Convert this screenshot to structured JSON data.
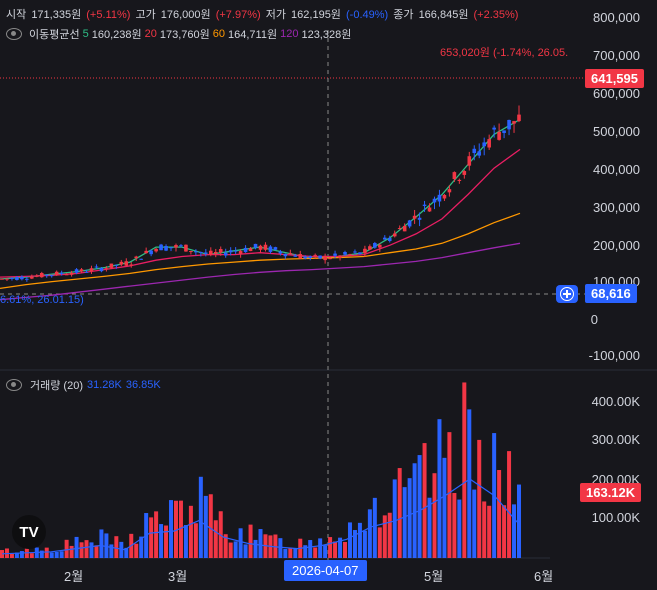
{
  "ohlc": {
    "open_label": "시작",
    "open_value": "171,335원",
    "open_change": "(+5.11%)",
    "high_label": "고가",
    "high_value": "176,000원",
    "high_change": "(+7.97%)",
    "low_label": "저가",
    "low_value": "162,195원",
    "low_change": "(-0.49%)",
    "close_label": "종가",
    "close_value": "166,845원",
    "close_change": "(+2.35%)"
  },
  "ma": {
    "title": "이동평균선",
    "p5": "5",
    "v5": "160,238원",
    "p20": "20",
    "v20": "173,760원",
    "p60": "60",
    "v60": "164,711원",
    "p120": "120",
    "v120": "123,328원"
  },
  "volume": {
    "title": "거래량 (20)",
    "v1": "31.28K",
    "v2": "36.85K"
  },
  "price_axis": [
    "800,000",
    "700,000",
    "600,000",
    "500,000",
    "400,000",
    "300,000",
    "200,000",
    "100,000",
    "0",
    "-100,000"
  ],
  "volume_axis": [
    "400.00K",
    "300.00K",
    "200.00K",
    "100.00K"
  ],
  "time_axis": [
    "2월",
    "3월",
    "5월",
    "6월"
  ],
  "crosshair_date": "2026-04-07",
  "current_price_tag": "641,595",
  "crosshair_price_tag": "68,616",
  "volume_tag": "163.12K",
  "high_annotation": "653,020원 (-1.74%, 26.05.",
  "low_annotation": "6.61%, 26.01.15)",
  "logo": "TV",
  "colors": {
    "up": "#f23645",
    "down": "#2962ff",
    "ma5": "#2ebd85",
    "ma20": "#e91e63",
    "ma60": "#ff9800",
    "ma120": "#9c27b0"
  },
  "chart_data": [
    {
      "type": "candlestick",
      "ylim": [
        -100000,
        800000
      ],
      "series": [
        {
          "name": "5",
          "values": [
            105000,
            110000,
            118000,
            125000,
            135000,
            150000,
            190000,
            190000,
            170000,
            180000,
            190000,
            175000,
            160000,
            165000,
            175000,
            215000,
            270000,
            330000,
            410000,
            490000,
            530000
          ]
        },
        {
          "name": "20",
          "values": [
            110000,
            112000,
            115000,
            120000,
            130000,
            140000,
            155000,
            165000,
            170000,
            170000,
            175000,
            170000,
            165000,
            165000,
            170000,
            195000,
            225000,
            265000,
            330000,
            400000,
            450000
          ]
        },
        {
          "name": "60",
          "values": [
            80000,
            90000,
            98000,
            105000,
            112000,
            120000,
            130000,
            138000,
            145000,
            150000,
            155000,
            158000,
            160000,
            162000,
            165000,
            175000,
            185000,
            200000,
            225000,
            255000,
            280000
          ]
        },
        {
          "name": "120",
          "values": [
            50000,
            56000,
            62000,
            70000,
            78000,
            86000,
            94000,
            102000,
            110000,
            117000,
            123000,
            127000,
            130000,
            134000,
            138000,
            145000,
            152000,
            162000,
            175000,
            188000,
            200000
          ]
        }
      ]
    },
    {
      "type": "bar",
      "ylim": [
        0,
        450000
      ],
      "series": [
        {
          "name": "거래량",
          "values": [
            20000,
            25000,
            30000,
            45000,
            60000,
            40000,
            120000,
            130000,
            180000,
            100000,
            70000,
            55000,
            45000,
            60000,
            90000,
            150000,
            180000,
            230000,
            300000,
            380000,
            300000,
            163120
          ]
        }
      ]
    }
  ]
}
